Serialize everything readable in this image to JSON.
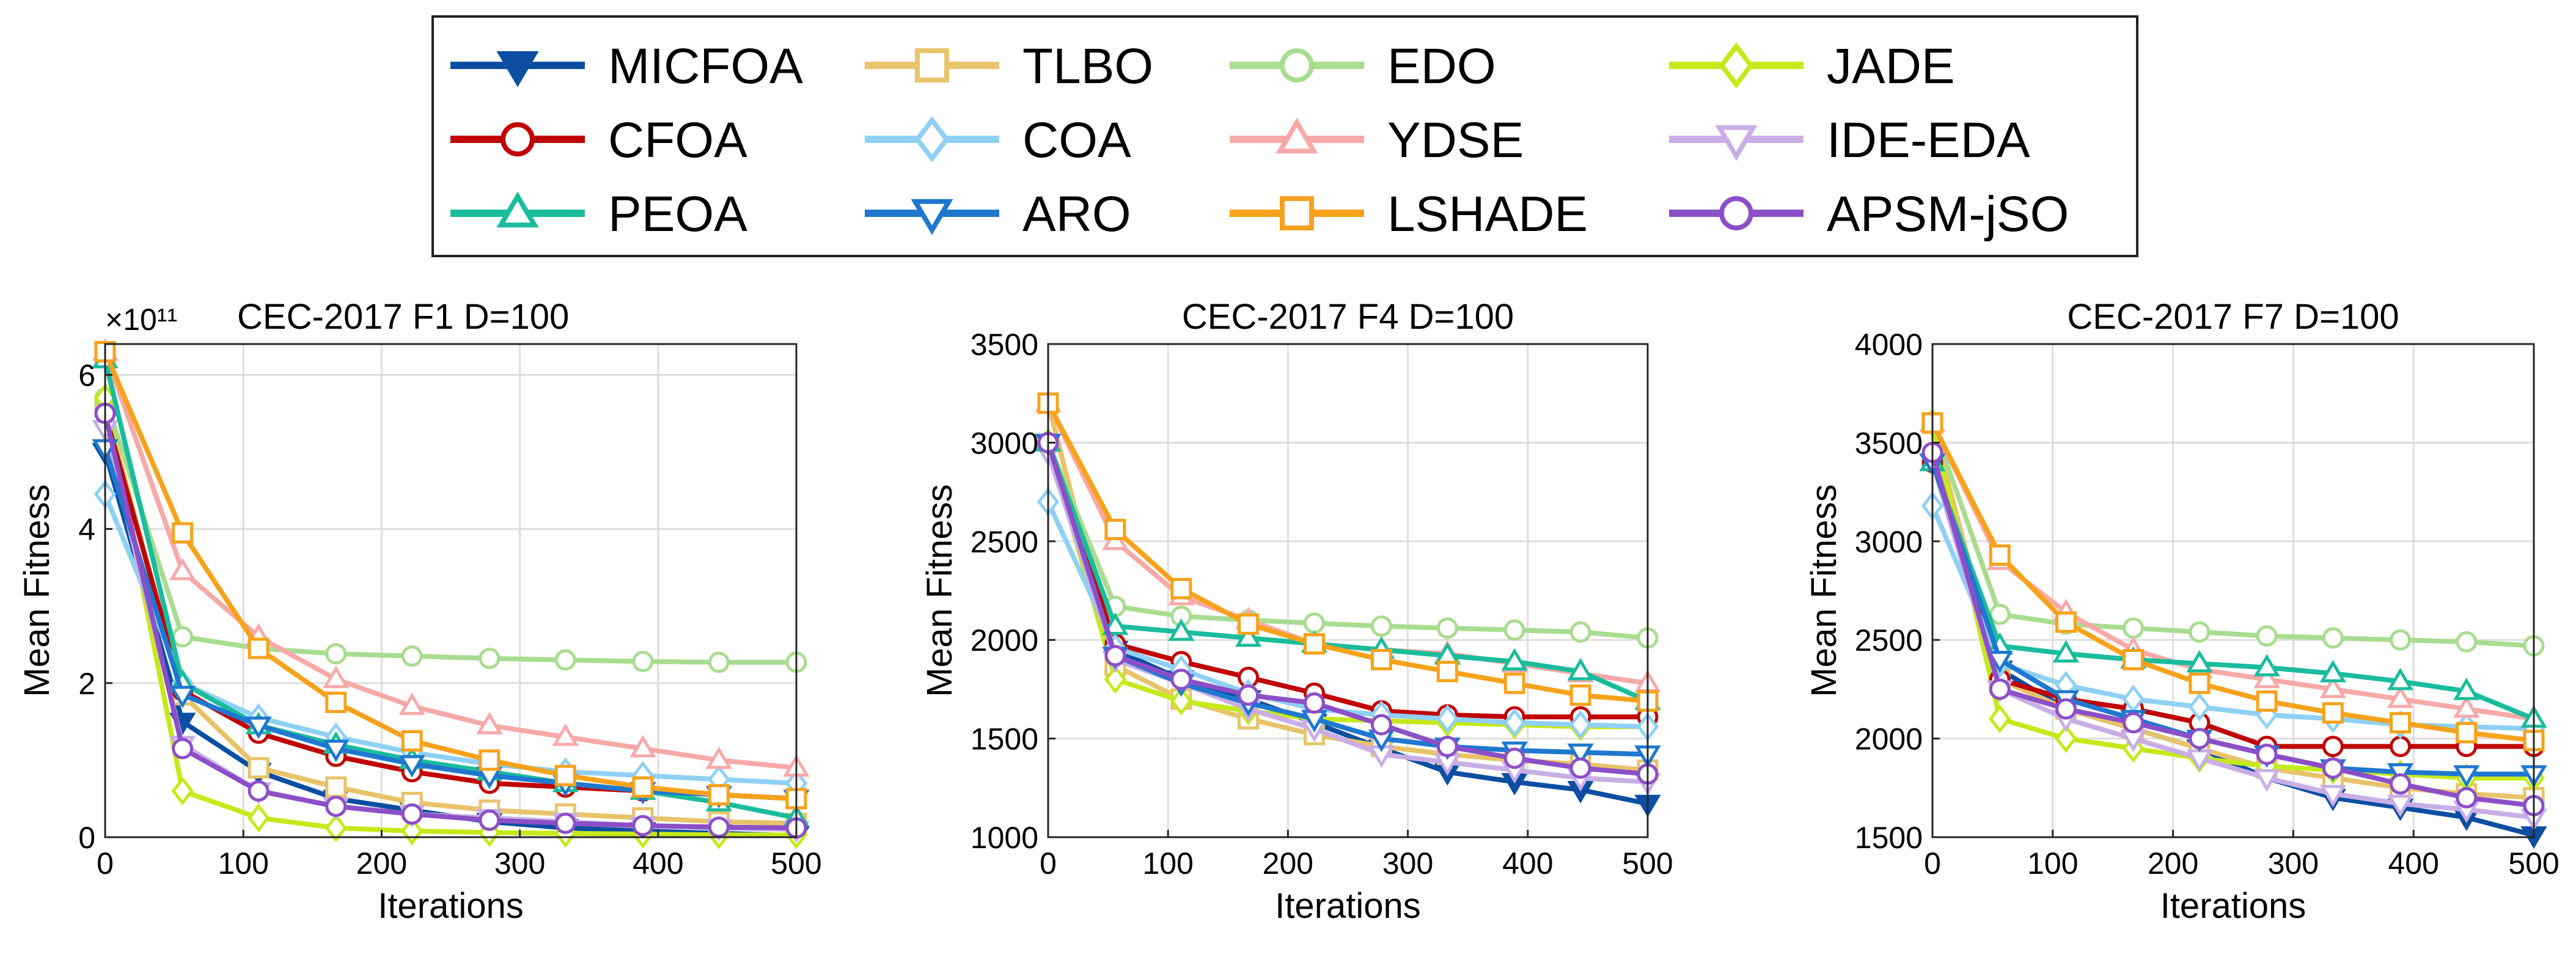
{
  "legend": {
    "entries": [
      {
        "name": "MICFOA",
        "color": "#0B4EA2",
        "marker": "triangle-down-filled"
      },
      {
        "name": "TLBO",
        "color": "#E8C36A",
        "marker": "square"
      },
      {
        "name": "EDO",
        "color": "#A9DC90",
        "marker": "circle"
      },
      {
        "name": "JADE",
        "color": "#C5E91A",
        "marker": "diamond"
      },
      {
        "name": "CFOA",
        "color": "#C00000",
        "marker": "circle"
      },
      {
        "name": "COA",
        "color": "#8FD0F5",
        "marker": "diamond"
      },
      {
        "name": "YDSE",
        "color": "#F7A9A8",
        "marker": "triangle-up"
      },
      {
        "name": "IDE-EDA",
        "color": "#C9AEE6",
        "marker": "triangle-down"
      },
      {
        "name": "PEOA",
        "color": "#1ABC9C",
        "marker": "triangle-up"
      },
      {
        "name": "ARO",
        "color": "#1F77D0",
        "marker": "triangle-down"
      },
      {
        "name": "LSHADE",
        "color": "#F7A21B",
        "marker": "square"
      },
      {
        "name": "APSM-jSO",
        "color": "#8B4FC7",
        "marker": "circle"
      }
    ]
  },
  "chart_data": [
    {
      "type": "line",
      "title": "CEC-2017 F1 D=100",
      "xlabel": "Iterations",
      "ylabel": "Mean Fitness",
      "exponent_label": "×10¹¹",
      "x": [
        0,
        56,
        111,
        167,
        222,
        278,
        333,
        389,
        444,
        500
      ],
      "xlim": [
        0,
        500
      ],
      "ylim": [
        0,
        6.4
      ],
      "xticks": [
        0,
        100,
        200,
        300,
        400,
        500
      ],
      "yticks": [
        0,
        2,
        4,
        6
      ],
      "grid": true,
      "series": [
        {
          "name": "MICFOA",
          "values": [
            5.0,
            1.5,
            0.85,
            0.5,
            0.35,
            0.2,
            0.12,
            0.08,
            0.05,
            0.02
          ]
        },
        {
          "name": "TLBO",
          "values": [
            5.6,
            1.85,
            0.9,
            0.65,
            0.45,
            0.35,
            0.3,
            0.25,
            0.2,
            0.18
          ]
        },
        {
          "name": "EDO",
          "values": [
            5.7,
            2.6,
            2.45,
            2.38,
            2.35,
            2.32,
            2.3,
            2.28,
            2.27,
            2.27
          ]
        },
        {
          "name": "JADE",
          "values": [
            5.7,
            0.6,
            0.25,
            0.12,
            0.08,
            0.06,
            0.05,
            0.04,
            0.03,
            0.03
          ]
        },
        {
          "name": "CFOA",
          "values": [
            5.5,
            1.9,
            1.35,
            1.05,
            0.85,
            0.7,
            0.65,
            0.6,
            0.55,
            0.5
          ]
        },
        {
          "name": "COA",
          "values": [
            4.45,
            2.0,
            1.55,
            1.3,
            1.1,
            0.95,
            0.85,
            0.8,
            0.75,
            0.7
          ]
        },
        {
          "name": "YDSE",
          "values": [
            6.3,
            3.45,
            2.6,
            2.05,
            1.7,
            1.45,
            1.3,
            1.15,
            1.0,
            0.9
          ]
        },
        {
          "name": "IDE-EDA",
          "values": [
            5.3,
            1.2,
            0.6,
            0.4,
            0.3,
            0.25,
            0.2,
            0.15,
            0.12,
            0.1
          ]
        },
        {
          "name": "PEOA",
          "values": [
            6.2,
            2.0,
            1.45,
            1.2,
            1.0,
            0.85,
            0.7,
            0.6,
            0.45,
            0.25
          ]
        },
        {
          "name": "ARO",
          "values": [
            5.05,
            1.85,
            1.45,
            1.15,
            0.95,
            0.8,
            0.7,
            0.6,
            0.55,
            0.5
          ]
        },
        {
          "name": "LSHADE",
          "values": [
            6.3,
            3.95,
            2.45,
            1.75,
            1.25,
            1.0,
            0.8,
            0.65,
            0.55,
            0.5
          ]
        },
        {
          "name": "APSM-jSO",
          "values": [
            5.5,
            1.15,
            0.6,
            0.4,
            0.3,
            0.22,
            0.18,
            0.15,
            0.13,
            0.12
          ]
        }
      ]
    },
    {
      "type": "line",
      "title": "CEC-2017 F4 D=100",
      "xlabel": "Iterations",
      "ylabel": "Mean Fitness",
      "x": [
        0,
        56,
        111,
        167,
        222,
        278,
        333,
        389,
        444,
        500
      ],
      "xlim": [
        0,
        500
      ],
      "ylim": [
        1000,
        3500
      ],
      "xticks": [
        0,
        100,
        200,
        300,
        400,
        500
      ],
      "yticks": [
        1000,
        1500,
        2000,
        2500,
        3000,
        3500
      ],
      "grid": true,
      "series": [
        {
          "name": "MICFOA",
          "values": [
            2950,
            1950,
            1800,
            1700,
            1580,
            1450,
            1330,
            1280,
            1240,
            1170
          ]
        },
        {
          "name": "TLBO",
          "values": [
            3200,
            1870,
            1700,
            1600,
            1520,
            1460,
            1420,
            1390,
            1370,
            1340
          ]
        },
        {
          "name": "EDO",
          "values": [
            3000,
            2170,
            2120,
            2100,
            2085,
            2070,
            2060,
            2050,
            2040,
            2010
          ]
        },
        {
          "name": "JADE",
          "values": [
            3000,
            1800,
            1690,
            1640,
            1600,
            1590,
            1580,
            1570,
            1560,
            1560
          ]
        },
        {
          "name": "CFOA",
          "values": [
            3000,
            1980,
            1890,
            1810,
            1730,
            1640,
            1620,
            1610,
            1610,
            1610
          ]
        },
        {
          "name": "COA",
          "values": [
            2700,
            1960,
            1850,
            1730,
            1650,
            1620,
            1600,
            1580,
            1570,
            1560
          ]
        },
        {
          "name": "YDSE",
          "values": [
            3200,
            2500,
            2220,
            2100,
            1980,
            1950,
            1930,
            1880,
            1830,
            1780
          ]
        },
        {
          "name": "IDE-EDA",
          "values": [
            2950,
            1900,
            1780,
            1650,
            1550,
            1420,
            1380,
            1340,
            1300,
            1280
          ]
        },
        {
          "name": "PEOA",
          "values": [
            3000,
            2070,
            2040,
            2010,
            1980,
            1950,
            1920,
            1890,
            1840,
            1690
          ]
        },
        {
          "name": "ARO",
          "values": [
            3000,
            1920,
            1780,
            1680,
            1600,
            1500,
            1460,
            1440,
            1430,
            1420
          ]
        },
        {
          "name": "LSHADE",
          "values": [
            3200,
            2560,
            2260,
            2080,
            1980,
            1900,
            1840,
            1780,
            1720,
            1690
          ]
        },
        {
          "name": "APSM-jSO",
          "values": [
            3000,
            1920,
            1800,
            1720,
            1680,
            1570,
            1460,
            1400,
            1350,
            1320
          ]
        }
      ]
    },
    {
      "type": "line",
      "title": "CEC-2017 F7 D=100",
      "xlabel": "Iterations",
      "ylabel": "Mean Fitness",
      "x": [
        0,
        56,
        111,
        167,
        222,
        278,
        333,
        389,
        444,
        500
      ],
      "xlim": [
        0,
        500
      ],
      "ylim": [
        1500,
        4000
      ],
      "xticks": [
        0,
        100,
        200,
        300,
        400,
        500
      ],
      "yticks": [
        1500,
        2000,
        2500,
        3000,
        3500,
        4000
      ],
      "grid": true,
      "series": [
        {
          "name": "MICFOA",
          "values": [
            3400,
            2350,
            2150,
            2050,
            1950,
            1800,
            1700,
            1650,
            1600,
            1510
          ]
        },
        {
          "name": "TLBO",
          "values": [
            3600,
            2300,
            2150,
            2050,
            1950,
            1850,
            1800,
            1750,
            1720,
            1700
          ]
        },
        {
          "name": "EDO",
          "values": [
            3600,
            2630,
            2580,
            2560,
            2540,
            2520,
            2510,
            2500,
            2490,
            2470
          ]
        },
        {
          "name": "JADE",
          "values": [
            3600,
            2100,
            2000,
            1950,
            1900,
            1860,
            1840,
            1820,
            1800,
            1800
          ]
        },
        {
          "name": "CFOA",
          "values": [
            3400,
            2300,
            2200,
            2150,
            2080,
            1960,
            1960,
            1960,
            1960,
            1960
          ]
        },
        {
          "name": "COA",
          "values": [
            3180,
            2380,
            2270,
            2200,
            2160,
            2120,
            2100,
            2070,
            2060,
            2050
          ]
        },
        {
          "name": "YDSE",
          "values": [
            3600,
            2900,
            2640,
            2450,
            2350,
            2300,
            2250,
            2200,
            2150,
            2100
          ]
        },
        {
          "name": "IDE-EDA",
          "values": [
            3400,
            2250,
            2100,
            2000,
            1900,
            1800,
            1720,
            1670,
            1640,
            1600
          ]
        },
        {
          "name": "PEOA",
          "values": [
            3400,
            2470,
            2430,
            2400,
            2380,
            2360,
            2330,
            2290,
            2240,
            2100
          ]
        },
        {
          "name": "ARO",
          "values": [
            3400,
            2400,
            2200,
            2100,
            2000,
            1920,
            1850,
            1830,
            1820,
            1820
          ]
        },
        {
          "name": "LSHADE",
          "values": [
            3600,
            2930,
            2590,
            2400,
            2280,
            2190,
            2130,
            2080,
            2030,
            1990
          ]
        },
        {
          "name": "APSM-jSO",
          "values": [
            3450,
            2250,
            2150,
            2080,
            2000,
            1920,
            1850,
            1770,
            1700,
            1660
          ]
        }
      ]
    }
  ]
}
